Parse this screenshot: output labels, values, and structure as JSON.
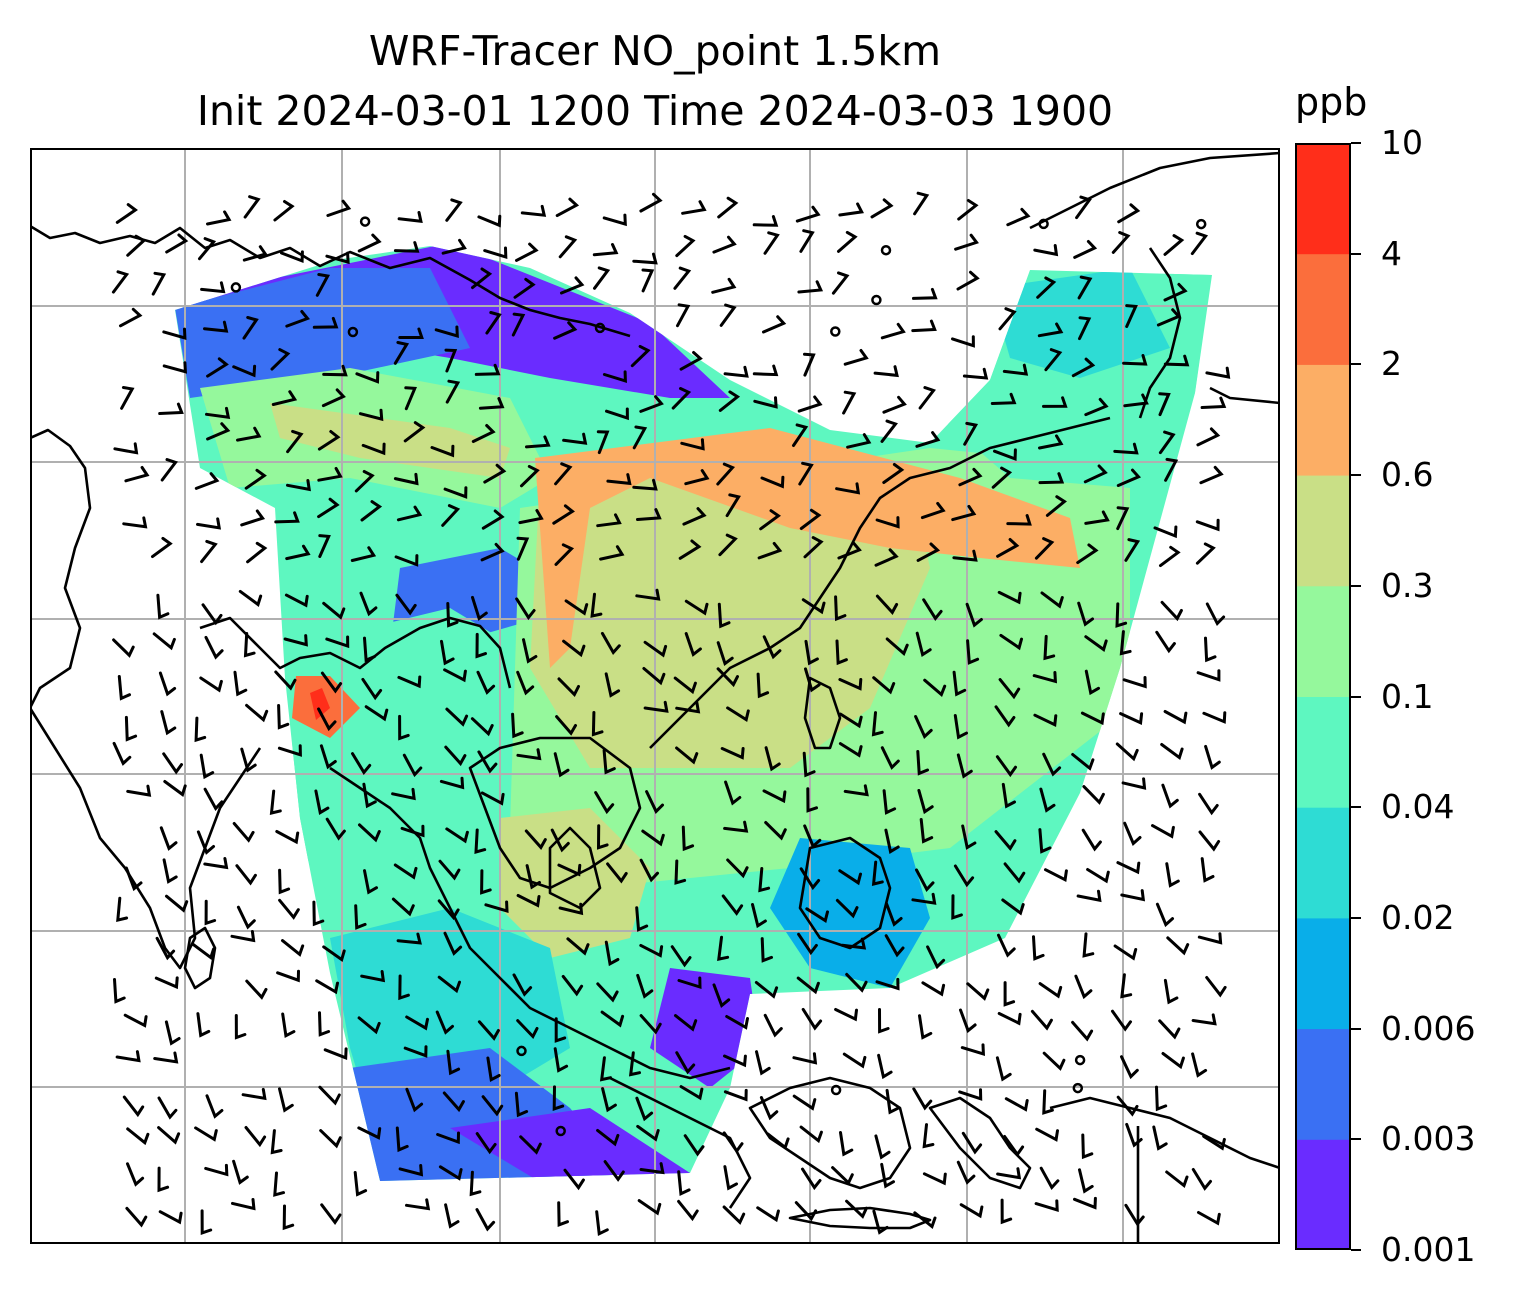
{
  "figure": {
    "title_line1": "WRF-Tracer NO_point 1.5km",
    "title_line2": "Init 2024-03-01 1200 Time 2024-03-03 1900"
  },
  "colorbar": {
    "unit": "ppb",
    "levels": [
      "0.001",
      "0.003",
      "0.006",
      "0.02",
      "0.04",
      "0.1",
      "0.3",
      "0.6",
      "2",
      "4",
      "10"
    ],
    "colors": [
      "#6a2cff",
      "#3a70f3",
      "#09aee9",
      "#2edcd4",
      "#5ef7c0",
      "#95f89c",
      "#c9df86",
      "#fcae65",
      "#fb6e3c",
      "#ff2e1a"
    ]
  },
  "map": {
    "gridlines": true,
    "coastline_color": "#000000",
    "grid_color": "#b0b0b0",
    "wind_barb_color": "#000000",
    "calm_marker": "circle"
  }
}
